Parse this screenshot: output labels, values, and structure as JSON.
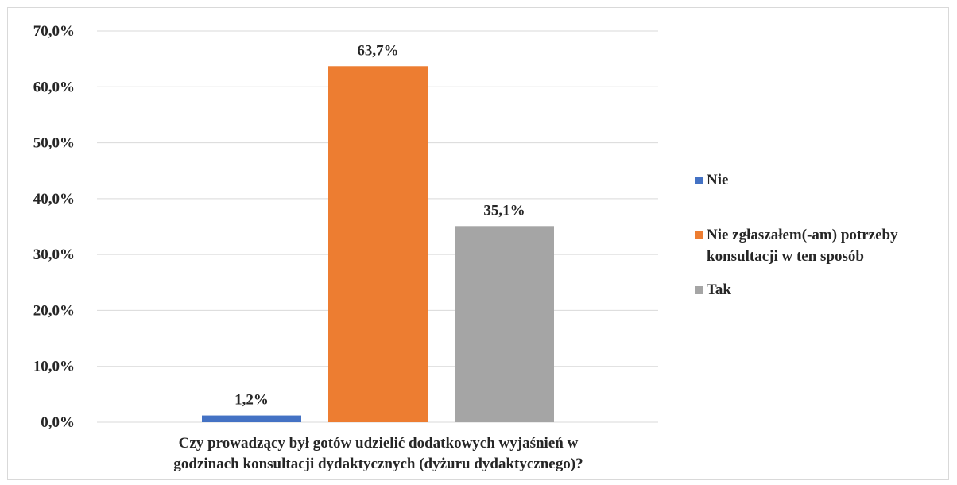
{
  "chart_data": {
    "type": "bar",
    "title": "",
    "xlabel_lines": [
      "Czy prowadzący był gotów udzielić dodatkowych wyjaśnień w",
      "godzinach konsultacji dydaktycznych (dyżuru dydaktycznego)?"
    ],
    "ylabel": "",
    "ylim": [
      0,
      70
    ],
    "yticks": [
      0,
      10,
      20,
      30,
      40,
      50,
      60,
      70
    ],
    "ytick_labels": [
      "0,0%",
      "10,0%",
      "20,0%",
      "30,0%",
      "40,0%",
      "50,0%",
      "60,0%",
      "70,0%"
    ],
    "grid": true,
    "legend_position": "right",
    "series": [
      {
        "name": "Nie",
        "value": 1.2,
        "label": "1,2%",
        "color": "#4472c4"
      },
      {
        "name": "Nie zgłaszałem(-am) potrzeby konsultacji w ten sposób",
        "value": 63.7,
        "label": "63,7%",
        "color": "#ed7d31"
      },
      {
        "name": "Tak",
        "value": 35.1,
        "label": "35,1%",
        "color": "#a5a5a5"
      }
    ],
    "legend_entries": [
      {
        "lines": [
          "Nie"
        ]
      },
      {
        "lines": [
          "Nie zgłaszałem(-am) potrzeby",
          "konsultacji w ten sposób"
        ]
      },
      {
        "lines": [
          "Tak"
        ]
      }
    ]
  }
}
